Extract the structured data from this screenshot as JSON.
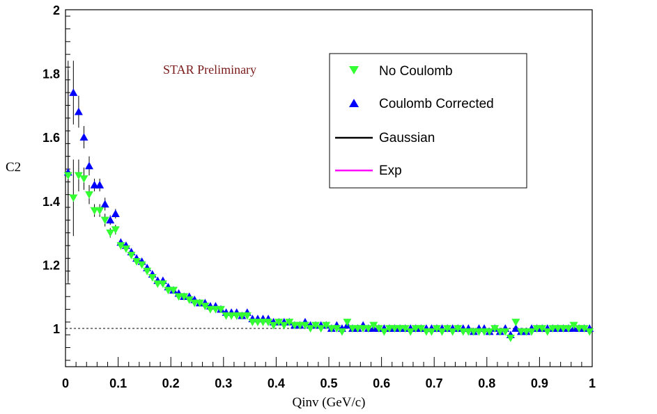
{
  "chart_data": {
    "type": "scatter",
    "xlabel": "Qinv (GeV/c)",
    "ylabel": "C2",
    "xlim": [
      0,
      1
    ],
    "ylim": [
      0.88,
      2.0
    ],
    "x_ticks": [
      "0",
      "0.1",
      "0.2",
      "0.3",
      "0.4",
      "0.5",
      "0.6",
      "0.7",
      "0.8",
      "0.9",
      "1"
    ],
    "y_ticks": [
      "1",
      "1.2",
      "1.4",
      "1.6",
      "1.8",
      "2"
    ],
    "reference_line": 1,
    "annotation": "STAR Preliminary",
    "legend_position": "top-right",
    "legend": [
      {
        "label": "No Coulomb",
        "marker": "triangle-down",
        "color": "#33ff33"
      },
      {
        "label": "Coulomb Corrected",
        "marker": "triangle-up",
        "color": "#0000ff"
      },
      {
        "label": "Gaussian",
        "marker": "line",
        "color": "#000000"
      },
      {
        "label": "Exp",
        "marker": "line",
        "color": "#ff00ff"
      }
    ],
    "series": [
      {
        "name": "Coulomb Corrected",
        "marker": "triangle-up",
        "color": "#0000ff",
        "x": [
          0.005,
          0.015,
          0.025,
          0.035,
          0.045,
          0.055,
          0.065,
          0.075,
          0.085,
          0.095,
          0.105,
          0.115,
          0.125,
          0.135,
          0.145,
          0.155,
          0.165,
          0.175,
          0.185,
          0.195,
          0.205,
          0.215,
          0.225,
          0.235,
          0.245,
          0.255,
          0.265,
          0.275,
          0.285,
          0.295,
          0.305,
          0.315,
          0.325,
          0.335,
          0.345,
          0.355,
          0.365,
          0.375,
          0.385,
          0.395,
          0.405,
          0.415,
          0.425,
          0.435,
          0.445,
          0.455,
          0.465,
          0.475,
          0.485,
          0.495,
          0.505,
          0.515,
          0.525,
          0.535,
          0.545,
          0.555,
          0.565,
          0.575,
          0.585,
          0.595,
          0.605,
          0.615,
          0.625,
          0.635,
          0.645,
          0.655,
          0.665,
          0.675,
          0.685,
          0.695,
          0.705,
          0.715,
          0.725,
          0.735,
          0.745,
          0.755,
          0.765,
          0.775,
          0.785,
          0.795,
          0.805,
          0.815,
          0.825,
          0.835,
          0.845,
          0.855,
          0.865,
          0.875,
          0.885,
          0.895,
          0.905,
          0.915,
          0.925,
          0.935,
          0.945,
          0.955,
          0.965,
          0.975,
          0.985,
          0.995
        ],
        "y": [
          1.49,
          1.74,
          1.68,
          1.6,
          1.51,
          1.45,
          1.45,
          1.39,
          1.34,
          1.36,
          1.27,
          1.26,
          1.24,
          1.22,
          1.21,
          1.19,
          1.17,
          1.15,
          1.15,
          1.13,
          1.12,
          1.11,
          1.1,
          1.1,
          1.09,
          1.08,
          1.08,
          1.07,
          1.07,
          1.06,
          1.05,
          1.05,
          1.05,
          1.04,
          1.05,
          1.03,
          1.03,
          1.03,
          1.03,
          1.02,
          1.02,
          1.02,
          1.02,
          1.01,
          1.01,
          1.02,
          1.01,
          1.01,
          1.01,
          1.01,
          1.0,
          1.01,
          1.0,
          1.01,
          1.0,
          1.0,
          1.01,
          1.0,
          1.0,
          1.0,
          1.0,
          1.0,
          1.0,
          1.0,
          1.0,
          1.0,
          1.0,
          1.0,
          1.0,
          1.0,
          1.0,
          1.0,
          1.0,
          1.0,
          1.0,
          1.0,
          1.0,
          0.99,
          1.0,
          1.0,
          0.99,
          1.0,
          0.99,
          1.0,
          0.98,
          1.0,
          0.99,
          0.99,
          1.0,
          1.0,
          1.0,
          1.0,
          1.0,
          1.0,
          1.0,
          1.0,
          1.0,
          1.0,
          1.0,
          1.0
        ],
        "err": [
          0.35,
          0.1,
          0.05,
          0.035,
          0.03,
          0.02,
          0.02,
          0.02,
          0.015,
          0.015,
          0.012,
          0.01,
          0.01,
          0.01,
          0.01,
          0.008,
          0.008,
          0.007,
          0.007,
          0.007,
          0.006,
          0.006,
          0.006,
          0.006,
          0.005,
          0.005,
          0.005,
          0.005,
          0.005,
          0.005,
          0.005,
          0.004,
          0.004,
          0.004,
          0.004,
          0.004,
          0.004,
          0.004,
          0.004,
          0.004,
          0.004,
          0.004,
          0.004,
          0.004,
          0.004,
          0.004,
          0.004,
          0.004,
          0.004,
          0.004,
          0.004,
          0.004,
          0.004,
          0.004,
          0.004,
          0.004,
          0.004,
          0.004,
          0.004,
          0.004,
          0.004,
          0.004,
          0.004,
          0.004,
          0.004,
          0.004,
          0.004,
          0.004,
          0.004,
          0.004,
          0.004,
          0.004,
          0.004,
          0.004,
          0.004,
          0.004,
          0.004,
          0.004,
          0.004,
          0.004,
          0.004,
          0.004,
          0.004,
          0.004,
          0.004,
          0.004,
          0.004,
          0.004,
          0.004,
          0.004,
          0.004,
          0.004,
          0.004,
          0.004,
          0.004,
          0.004,
          0.004,
          0.004,
          0.004,
          0.004
        ]
      },
      {
        "name": "No Coulomb",
        "marker": "triangle-down",
        "color": "#33ff33",
        "x": [
          0.005,
          0.015,
          0.025,
          0.035,
          0.045,
          0.055,
          0.065,
          0.075,
          0.085,
          0.095,
          0.105,
          0.115,
          0.125,
          0.135,
          0.145,
          0.155,
          0.165,
          0.175,
          0.185,
          0.195,
          0.205,
          0.215,
          0.225,
          0.235,
          0.245,
          0.255,
          0.265,
          0.275,
          0.285,
          0.295,
          0.305,
          0.315,
          0.325,
          0.335,
          0.345,
          0.355,
          0.365,
          0.375,
          0.385,
          0.395,
          0.405,
          0.415,
          0.425,
          0.435,
          0.445,
          0.455,
          0.465,
          0.475,
          0.485,
          0.495,
          0.505,
          0.515,
          0.525,
          0.535,
          0.545,
          0.555,
          0.565,
          0.575,
          0.585,
          0.595,
          0.605,
          0.615,
          0.625,
          0.635,
          0.645,
          0.655,
          0.665,
          0.675,
          0.685,
          0.695,
          0.705,
          0.715,
          0.725,
          0.735,
          0.745,
          0.755,
          0.765,
          0.775,
          0.785,
          0.795,
          0.805,
          0.815,
          0.825,
          0.835,
          0.845,
          0.855,
          0.865,
          0.875,
          0.885,
          0.895,
          0.905,
          0.915,
          0.925,
          0.935,
          0.945,
          0.955,
          0.965,
          0.975,
          0.985,
          0.995
        ],
        "y": [
          1.48,
          1.41,
          1.48,
          1.47,
          1.42,
          1.37,
          1.37,
          1.34,
          1.3,
          1.31,
          1.26,
          1.25,
          1.23,
          1.21,
          1.2,
          1.18,
          1.16,
          1.14,
          1.14,
          1.12,
          1.12,
          1.1,
          1.1,
          1.09,
          1.08,
          1.08,
          1.07,
          1.06,
          1.06,
          1.06,
          1.04,
          1.04,
          1.04,
          1.04,
          1.04,
          1.02,
          1.02,
          1.02,
          1.02,
          1.01,
          1.02,
          1.01,
          1.02,
          1.01,
          1.01,
          1.01,
          1.0,
          1.01,
          1.0,
          1.01,
          1.0,
          1.0,
          0.99,
          1.02,
          1.0,
          1.0,
          1.0,
          1.0,
          1.01,
          1.0,
          0.99,
          1.0,
          1.0,
          1.0,
          1.0,
          0.99,
          1.0,
          1.0,
          0.99,
          0.99,
          1.0,
          0.99,
          1.0,
          0.99,
          1.0,
          0.99,
          0.99,
          0.99,
          0.99,
          0.99,
          0.99,
          1.0,
          0.99,
          0.99,
          0.97,
          1.02,
          0.99,
          0.99,
          0.99,
          1.0,
          1.0,
          0.99,
          1.0,
          1.0,
          1.0,
          1.0,
          1.01,
          1.0,
          1.0,
          0.99
        ],
        "err": [
          0.33,
          0.12,
          0.05,
          0.035,
          0.03,
          0.02,
          0.02,
          0.02,
          0.015,
          0.015,
          0.012,
          0.01,
          0.01,
          0.01,
          0.01,
          0.008,
          0.008,
          0.007,
          0.007,
          0.007,
          0.006,
          0.006,
          0.006,
          0.006,
          0.005,
          0.005,
          0.005,
          0.005,
          0.005,
          0.005,
          0.005,
          0.004,
          0.004,
          0.004,
          0.004,
          0.004,
          0.004,
          0.004,
          0.004,
          0.004,
          0.004,
          0.004,
          0.004,
          0.004,
          0.004,
          0.004,
          0.004,
          0.004,
          0.004,
          0.004,
          0.004,
          0.004,
          0.004,
          0.004,
          0.004,
          0.004,
          0.004,
          0.004,
          0.004,
          0.004,
          0.004,
          0.004,
          0.004,
          0.004,
          0.004,
          0.004,
          0.004,
          0.004,
          0.004,
          0.004,
          0.004,
          0.004,
          0.004,
          0.004,
          0.004,
          0.004,
          0.004,
          0.004,
          0.004,
          0.004,
          0.004,
          0.004,
          0.004,
          0.004,
          0.004,
          0.004,
          0.004,
          0.004,
          0.004,
          0.004,
          0.004,
          0.004,
          0.004,
          0.004,
          0.004,
          0.004,
          0.004,
          0.004,
          0.004,
          0.004
        ]
      }
    ]
  }
}
